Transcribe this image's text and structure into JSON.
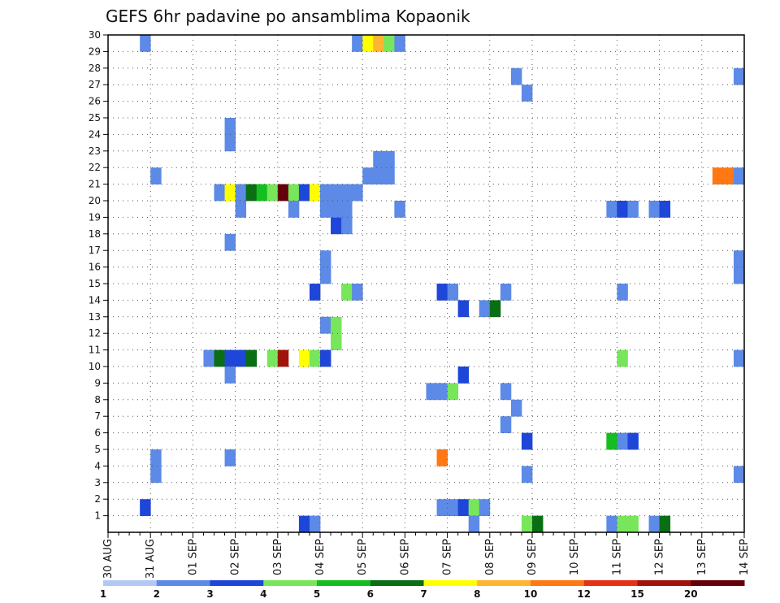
{
  "chart_data": {
    "type": "heatmap",
    "title": "GEFS 6hr padavine po ansamblima Kopaonik",
    "x_tick_labels": [
      "30 AUG",
      "31 AUG",
      "01 SEP",
      "02 SEP",
      "03 SEP",
      "04 SEP",
      "05 SEP",
      "06 SEP",
      "07 SEP",
      "08 SEP",
      "09 SEP",
      "10 SEP",
      "11 SEP",
      "12 SEP",
      "13 SEP",
      "14 SEP"
    ],
    "y_tick_labels": [
      "1",
      "2",
      "3",
      "4",
      "5",
      "6",
      "7",
      "8",
      "9",
      "10",
      "11",
      "12",
      "13",
      "14",
      "15",
      "16",
      "17",
      "18",
      "19",
      "20",
      "21",
      "22",
      "23",
      "24",
      "25",
      "26",
      "27",
      "28",
      "29",
      "30"
    ],
    "xlim": [
      0,
      60
    ],
    "ylim": [
      0,
      30
    ],
    "grid": true,
    "colorbar": {
      "labels": [
        "1",
        "2",
        "3",
        "4",
        "5",
        "6",
        "7",
        "8",
        "10",
        "12",
        "15",
        "20"
      ],
      "colors": [
        "#b4c8f4",
        "#5c8ae6",
        "#1e46d8",
        "#78e65a",
        "#14be1e",
        "#0a6e14",
        "#ffff00",
        "#ffb432",
        "#ff7814",
        "#e63214",
        "#a0140a",
        "#64000a"
      ]
    },
    "cells": [
      [
        3,
        29,
        1
      ],
      [
        23,
        29,
        1
      ],
      [
        24,
        29,
        6
      ],
      [
        25,
        29,
        7
      ],
      [
        26,
        29,
        3
      ],
      [
        27,
        29,
        1
      ],
      [
        38,
        27,
        1
      ],
      [
        59,
        27,
        1
      ],
      [
        39,
        26,
        1
      ],
      [
        11,
        24,
        1
      ],
      [
        11,
        23,
        1
      ],
      [
        25,
        22,
        1
      ],
      [
        26,
        22,
        1
      ],
      [
        25,
        21,
        1
      ],
      [
        26,
        21,
        1
      ],
      [
        4,
        21,
        1
      ],
      [
        24,
        21,
        1
      ],
      [
        57,
        21,
        8
      ],
      [
        58,
        21,
        8
      ],
      [
        59,
        21,
        1
      ],
      [
        10,
        20,
        1
      ],
      [
        11,
        20,
        6
      ],
      [
        12,
        20,
        1
      ],
      [
        12,
        19,
        1
      ],
      [
        13,
        20,
        5
      ],
      [
        14,
        20,
        4
      ],
      [
        15,
        20,
        3
      ],
      [
        16,
        20,
        11
      ],
      [
        17,
        20,
        3
      ],
      [
        18,
        20,
        2
      ],
      [
        19,
        20,
        6
      ],
      [
        20,
        20,
        1
      ],
      [
        20,
        19,
        1
      ],
      [
        21,
        20,
        1
      ],
      [
        17,
        19,
        1
      ],
      [
        22,
        20,
        1
      ],
      [
        23,
        20,
        1
      ],
      [
        22,
        19,
        1
      ],
      [
        21,
        18,
        2
      ],
      [
        21,
        19,
        1
      ],
      [
        27,
        19,
        1
      ],
      [
        47,
        19,
        1
      ],
      [
        48,
        19,
        2
      ],
      [
        49,
        19,
        1
      ],
      [
        51,
        19,
        1
      ],
      [
        52,
        19,
        2
      ],
      [
        22,
        18,
        1
      ],
      [
        11,
        17,
        1
      ],
      [
        20,
        16,
        1
      ],
      [
        59,
        16,
        1
      ],
      [
        20,
        15,
        1
      ],
      [
        59,
        15,
        1
      ],
      [
        19,
        14,
        2
      ],
      [
        22,
        14,
        3
      ],
      [
        23,
        14,
        1
      ],
      [
        31,
        14,
        2
      ],
      [
        32,
        14,
        1
      ],
      [
        37,
        14,
        1
      ],
      [
        48,
        14,
        1
      ],
      [
        33,
        13,
        2
      ],
      [
        35,
        13,
        1
      ],
      [
        36,
        13,
        5
      ],
      [
        20,
        12,
        1
      ],
      [
        21,
        12,
        3
      ],
      [
        21,
        11,
        3
      ],
      [
        9,
        10,
        1
      ],
      [
        10,
        10,
        5
      ],
      [
        11,
        10,
        2
      ],
      [
        12,
        10,
        2
      ],
      [
        13,
        10,
        5
      ],
      [
        15,
        10,
        3
      ],
      [
        16,
        10,
        10
      ],
      [
        18,
        10,
        6
      ],
      [
        19,
        10,
        3
      ],
      [
        20,
        10,
        2
      ],
      [
        48,
        10,
        3
      ],
      [
        59,
        10,
        1
      ],
      [
        11,
        9,
        1
      ],
      [
        33,
        9,
        2
      ],
      [
        30,
        8,
        1
      ],
      [
        31,
        8,
        1
      ],
      [
        32,
        8,
        3
      ],
      [
        37,
        8,
        1
      ],
      [
        38,
        7,
        1
      ],
      [
        37,
        6,
        1
      ],
      [
        39,
        5,
        2
      ],
      [
        47,
        5,
        4
      ],
      [
        48,
        5,
        1
      ],
      [
        49,
        5,
        2
      ],
      [
        11,
        4,
        1
      ],
      [
        31,
        4,
        8
      ],
      [
        4,
        3,
        1
      ],
      [
        4,
        4,
        1
      ],
      [
        39,
        3,
        1
      ],
      [
        59,
        3,
        1
      ],
      [
        3,
        1,
        2
      ],
      [
        31,
        1,
        1
      ],
      [
        32,
        1,
        1
      ],
      [
        33,
        1,
        2
      ],
      [
        34,
        1,
        3
      ],
      [
        35,
        1,
        1
      ],
      [
        18,
        0,
        2
      ],
      [
        19,
        0,
        1
      ],
      [
        34,
        0,
        1
      ],
      [
        39,
        0,
        3
      ],
      [
        40,
        0,
        5
      ],
      [
        47,
        0,
        1
      ],
      [
        48,
        0,
        3
      ],
      [
        49,
        0,
        3
      ],
      [
        51,
        0,
        1
      ],
      [
        52,
        0,
        5
      ]
    ]
  }
}
